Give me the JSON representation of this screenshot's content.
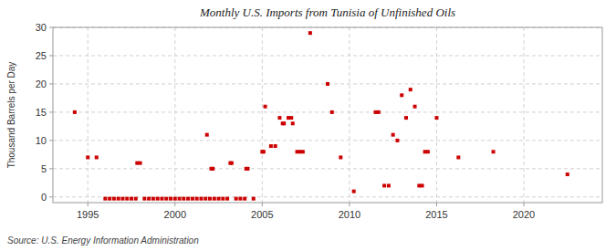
{
  "chart_data": {
    "type": "scatter",
    "title": "Monthly U.S. Imports from Tunisia of Unfinished Oils",
    "ylabel": "Thousand Barrels per Day",
    "source": "Source: U.S. Energy Information Administration",
    "color": "#cc0000",
    "marker": "square",
    "grid": true,
    "xlim": [
      1993.0,
      2024.5
    ],
    "xticks": [
      1995,
      2000,
      2005,
      2010,
      2015,
      2020
    ],
    "ylim": [
      -1,
      30
    ],
    "yticks": [
      0,
      5,
      10,
      15,
      20,
      25,
      30
    ],
    "x": [
      1994.25,
      1995.0,
      1995.5,
      1996.0,
      1996.25,
      1996.5,
      1996.75,
      1997.0,
      1997.25,
      1997.5,
      1997.75,
      1997.83,
      1998.0,
      1998.25,
      1998.5,
      1998.75,
      1999.0,
      1999.25,
      1999.5,
      1999.75,
      2000.0,
      2000.25,
      2000.5,
      2000.75,
      2001.0,
      2001.25,
      2001.5,
      2001.75,
      2001.83,
      2002.0,
      2002.08,
      2002.17,
      2002.25,
      2002.5,
      2002.75,
      2003.0,
      2003.17,
      2003.25,
      2003.5,
      2003.75,
      2004.0,
      2004.08,
      2004.17,
      2004.5,
      2005.0,
      2005.08,
      2005.17,
      2005.5,
      2005.75,
      2006.0,
      2006.17,
      2006.25,
      2006.5,
      2006.67,
      2006.75,
      2007.0,
      2007.17,
      2007.33,
      2007.75,
      2008.75,
      2009.0,
      2009.5,
      2010.25,
      2011.5,
      2011.67,
      2012.0,
      2012.25,
      2012.5,
      2012.75,
      2013.0,
      2013.25,
      2013.5,
      2013.75,
      2014.0,
      2014.17,
      2014.33,
      2014.5,
      2015.0,
      2016.25,
      2018.25,
      2022.5
    ],
    "values": [
      15,
      7,
      7,
      -0.3,
      -0.3,
      -0.3,
      -0.3,
      -0.3,
      -0.3,
      -0.3,
      -0.3,
      6,
      6,
      -0.3,
      -0.3,
      -0.3,
      -0.3,
      -0.3,
      -0.3,
      -0.3,
      -0.3,
      -0.3,
      -0.3,
      -0.3,
      -0.3,
      -0.3,
      -0.3,
      -0.3,
      11,
      -0.3,
      5,
      5,
      -0.3,
      -0.3,
      -0.3,
      -0.3,
      6,
      6,
      -0.3,
      -0.3,
      -0.3,
      5,
      5,
      -0.3,
      8,
      8,
      16,
      9,
      9,
      14,
      13,
      13,
      14,
      14,
      13,
      8,
      8,
      8,
      29,
      20,
      15,
      7,
      1,
      15,
      15,
      2,
      2,
      11,
      10,
      18,
      14,
      19,
      16,
      2,
      2,
      8,
      8,
      14,
      7,
      8,
      4
    ]
  }
}
